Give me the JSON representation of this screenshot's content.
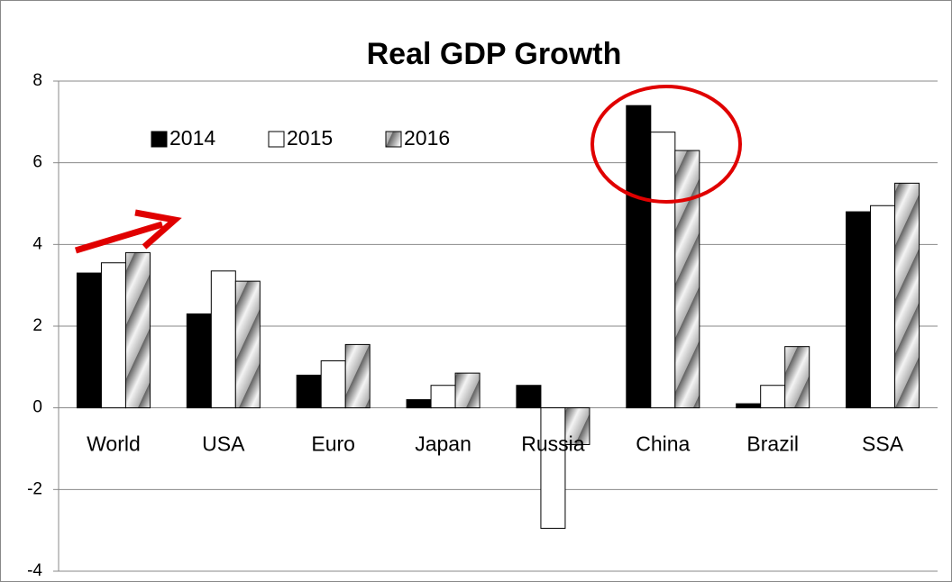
{
  "chart_data": {
    "type": "bar",
    "title": "Real GDP Growth",
    "categories": [
      "World",
      "USA",
      "Euro",
      "Japan",
      "Russia",
      "China",
      "Brazil",
      "SSA"
    ],
    "series": [
      {
        "name": "2014",
        "color": "#000000",
        "values": [
          3.3,
          2.3,
          0.8,
          0.2,
          0.55,
          7.4,
          0.1,
          4.8
        ]
      },
      {
        "name": "2015",
        "color": "#ffffff",
        "values": [
          3.55,
          3.35,
          1.15,
          0.55,
          -2.95,
          6.75,
          0.55,
          4.95
        ]
      },
      {
        "name": "2016",
        "color": "#b0b0b0",
        "values": [
          3.8,
          3.1,
          1.55,
          0.85,
          -0.9,
          6.3,
          1.5,
          5.5
        ]
      }
    ],
    "ylim": [
      -4,
      8
    ],
    "yticks": [
      -4,
      -2,
      0,
      2,
      4,
      6,
      8
    ],
    "grid": true,
    "legend": "upper left"
  }
}
